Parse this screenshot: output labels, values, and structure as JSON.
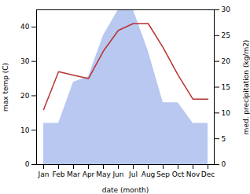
{
  "chart_data": {
    "type": "line",
    "xlabel": "date (month)",
    "ylabel": "max temp (C)",
    "y2label": "med. precipitation (kg/m2)",
    "categories": [
      "Jan",
      "Feb",
      "Mar",
      "Apr",
      "May",
      "Jun",
      "Jul",
      "Aug",
      "Sep",
      "Oct",
      "Nov",
      "Dec"
    ],
    "series": [
      {
        "type": "area",
        "axis": "y2",
        "color": "#b8c8f0",
        "values": [
          8,
          8,
          16,
          17,
          25,
          30,
          30,
          22,
          12,
          12,
          8,
          8
        ]
      },
      {
        "type": "line",
        "color": "#b83232",
        "values": [
          16,
          27,
          26,
          25,
          33,
          39,
          41,
          41,
          34,
          26,
          19,
          19
        ]
      }
    ],
    "ylim": [
      0,
      45
    ],
    "yticks": [
      0,
      10,
      20,
      30,
      40
    ],
    "y2lim": [
      0,
      30
    ],
    "y2ticks": [
      0,
      5,
      10,
      15,
      20,
      25,
      30
    ],
    "grid": false
  }
}
